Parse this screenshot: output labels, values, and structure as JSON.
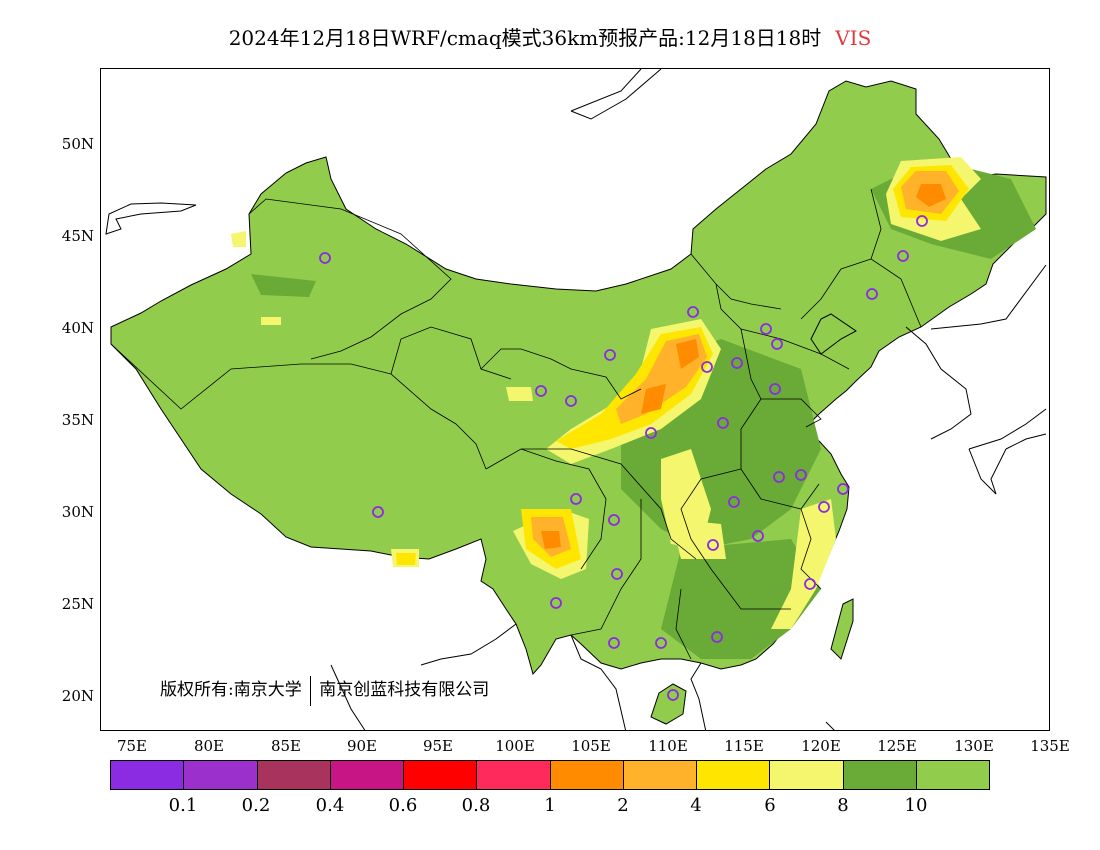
{
  "title": {
    "text": "2024年12月18日WRF/cmaq模式36km预报产品:12月18日18时",
    "variable": "VIS",
    "variable_color": "#e23b3b"
  },
  "map": {
    "lat_labels": [
      "50N",
      "45N",
      "40N",
      "35N",
      "30N",
      "25N",
      "20N"
    ],
    "lon_labels": [
      "75E",
      "80E",
      "85E",
      "90E",
      "95E",
      "100E",
      "105E",
      "110E",
      "115E",
      "120E",
      "125E",
      "130E",
      "135E"
    ],
    "copyright_owner": "版权所有:南京大学",
    "copyright_partner": "南京创蓝科技有限公司",
    "land_color": "#92cc4c"
  },
  "legend": {
    "colors": [
      "#8b2be2",
      "#9b30cd",
      "#a8335c",
      "#c71585",
      "#ff0000",
      "#ff2a5c",
      "#ff8c00",
      "#ffb22a",
      "#ffe600",
      "#f4f66e",
      "#6aaa36",
      "#92cc4c"
    ],
    "labels": [
      "0.1",
      "0.2",
      "0.4",
      "0.6",
      "0.8",
      "1",
      "2",
      "4",
      "6",
      "8",
      "10"
    ]
  }
}
